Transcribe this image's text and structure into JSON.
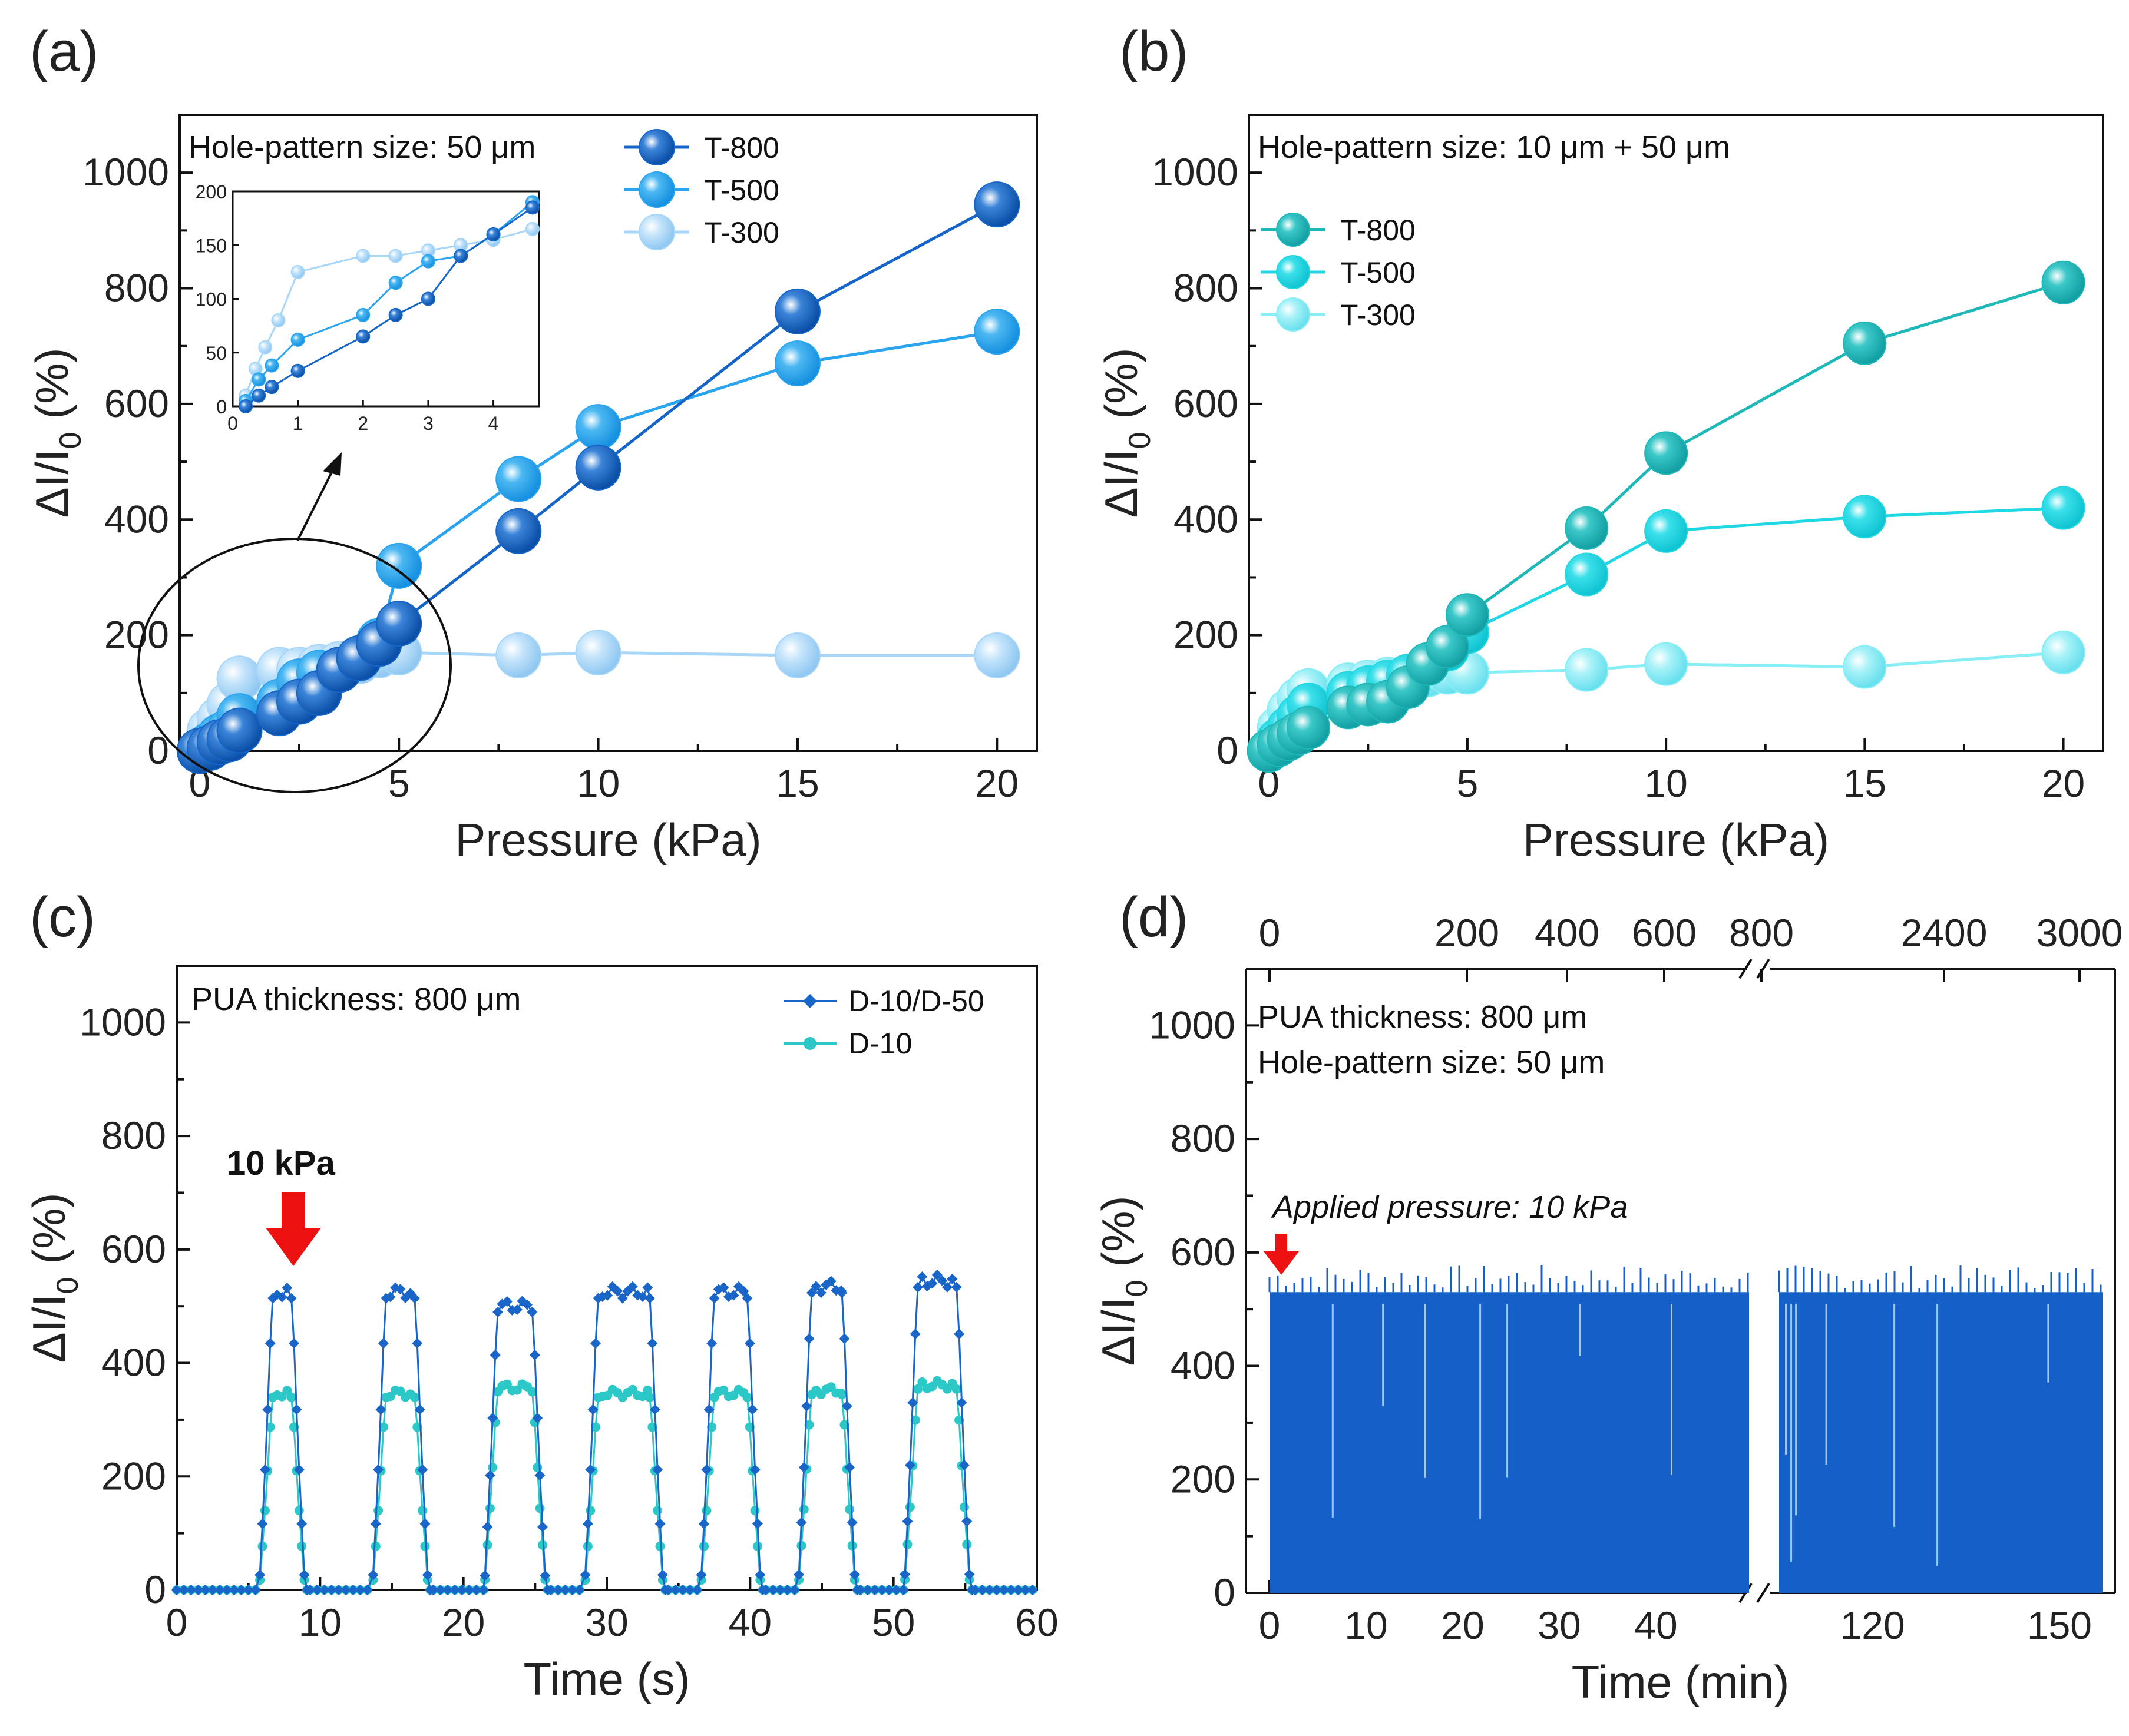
{
  "colors": {
    "t800": "#1565c8",
    "t500": "#2aa4ee",
    "t300": "#a8d6f8",
    "c800": "#1fb8b8",
    "c500": "#20d8e4",
    "c300": "#88eef6",
    "d1050": "#1a66c8",
    "d10": "#2cc8c8",
    "arrow": "#ee1111",
    "dfill": "#1460c8"
  },
  "chart_data": [
    {
      "panel": "(a)",
      "type": "line",
      "xlabel": "Pressure (kPa)",
      "ylabel_main": "ΔI/I",
      "ylabel_sub": "0",
      "ylabel_tail": " (%)",
      "xlim": [
        -0.5,
        21
      ],
      "ylim": [
        0,
        1100
      ],
      "xticks": [
        0,
        5,
        10,
        15,
        20
      ],
      "yticks": [
        0,
        200,
        400,
        600,
        800,
        1000
      ],
      "annotation": "Hole-pattern size: 50 μm",
      "series": [
        {
          "name": "T-800",
          "x": [
            0,
            0.25,
            0.5,
            0.75,
            1,
            2,
            2.5,
            3,
            3.5,
            4,
            4.5,
            5,
            8,
            10,
            15,
            20
          ],
          "y": [
            0,
            5,
            15,
            20,
            35,
            65,
            85,
            100,
            140,
            160,
            185,
            220,
            380,
            490,
            760,
            945
          ]
        },
        {
          "name": "T-500",
          "x": [
            0,
            0.25,
            0.5,
            0.75,
            1,
            2,
            2.5,
            3,
            3.5,
            4,
            4.5,
            5,
            8,
            10,
            15,
            20
          ],
          "y": [
            0,
            10,
            25,
            35,
            60,
            85,
            120,
            135,
            140,
            160,
            190,
            320,
            470,
            560,
            670,
            725
          ]
        },
        {
          "name": "T-300",
          "x": [
            0,
            0.25,
            0.5,
            0.75,
            1,
            2,
            2.5,
            3,
            3.5,
            4,
            4.5,
            5,
            8,
            10,
            15,
            20
          ],
          "y": [
            0,
            35,
            55,
            80,
            125,
            140,
            140,
            145,
            150,
            155,
            165,
            170,
            165,
            170,
            165,
            165
          ]
        }
      ],
      "inset": {
        "xlim": [
          0,
          4.7
        ],
        "ylim": [
          0,
          200
        ],
        "xticks": [
          0,
          1,
          2,
          3,
          4
        ],
        "yticks": [
          0,
          50,
          100,
          150,
          200
        ],
        "series": [
          {
            "name": "T-800",
            "x": [
              0.2,
              0.4,
              0.6,
              1,
              2,
              2.5,
              3,
              3.5,
              4,
              4.6
            ],
            "y": [
              0,
              10,
              18,
              33,
              65,
              85,
              100,
              140,
              160,
              185
            ]
          },
          {
            "name": "T-500",
            "x": [
              0.2,
              0.4,
              0.6,
              1,
              2,
              2.5,
              3,
              3.5,
              4,
              4.6
            ],
            "y": [
              5,
              25,
              38,
              62,
              85,
              115,
              135,
              140,
              160,
              190
            ]
          },
          {
            "name": "T-300",
            "x": [
              0.2,
              0.35,
              0.5,
              0.7,
              1,
              2,
              2.5,
              3,
              3.5,
              4,
              4.6
            ],
            "y": [
              10,
              35,
              55,
              80,
              125,
              140,
              140,
              145,
              150,
              155,
              165
            ]
          }
        ]
      }
    },
    {
      "panel": "(b)",
      "type": "line",
      "xlabel": "Pressure (kPa)",
      "ylabel_main": "ΔI/I",
      "ylabel_sub": "0",
      "ylabel_tail": " (%)",
      "xlim": [
        -0.5,
        21
      ],
      "ylim": [
        0,
        1100
      ],
      "xticks": [
        0,
        5,
        10,
        15,
        20
      ],
      "yticks": [
        0,
        200,
        400,
        600,
        800,
        1000
      ],
      "annotation": "Hole-pattern size: 10 μm + 50 μm",
      "series": [
        {
          "name": "T-800",
          "x": [
            0,
            0.25,
            0.5,
            0.75,
            1,
            2,
            2.5,
            3,
            3.5,
            4,
            4.5,
            5,
            8,
            10,
            15,
            20
          ],
          "y": [
            0,
            10,
            20,
            30,
            40,
            75,
            80,
            85,
            110,
            150,
            180,
            235,
            385,
            515,
            705,
            810
          ]
        },
        {
          "name": "T-500",
          "x": [
            0,
            0.25,
            0.5,
            0.75,
            1,
            2,
            2.5,
            3,
            3.5,
            4,
            4.5,
            5,
            8,
            10,
            15,
            20
          ],
          "y": [
            0,
            20,
            40,
            60,
            80,
            100,
            110,
            120,
            130,
            150,
            175,
            205,
            305,
            380,
            405,
            420
          ]
        },
        {
          "name": "T-300",
          "x": [
            0,
            0.25,
            0.5,
            0.75,
            1,
            2,
            2.5,
            3,
            3.5,
            4,
            4.5,
            5,
            8,
            10,
            15,
            20
          ],
          "y": [
            0,
            40,
            70,
            90,
            105,
            115,
            120,
            125,
            125,
            130,
            135,
            135,
            140,
            150,
            145,
            170
          ]
        }
      ]
    },
    {
      "panel": "(c)",
      "type": "line",
      "xlabel": "Time (s)",
      "ylabel_main": "ΔI/I",
      "ylabel_sub": "0",
      "ylabel_tail": " (%)",
      "xlim": [
        0,
        60
      ],
      "ylim": [
        0,
        1100
      ],
      "xticks": [
        0,
        10,
        20,
        30,
        40,
        50,
        60
      ],
      "yticks": [
        0,
        200,
        400,
        600,
        800,
        1000
      ],
      "annotation": "PUA thickness: 800 μm",
      "pressure_label": "10 kPa",
      "pulses": {
        "starts": [
          5.8,
          13.7,
          21.5,
          28.5,
          36.6,
          43.4,
          50.8
        ],
        "ends": [
          9.0,
          17.6,
          25.8,
          34.0,
          40.8,
          47.4,
          55.4
        ],
        "D-10/D-50": [
          530,
          530,
          505,
          530,
          530,
          540,
          550
        ],
        "D-10": [
          350,
          350,
          360,
          350,
          350,
          355,
          365
        ]
      },
      "series": [
        {
          "name": "D-10/D-50",
          "baseline": 0
        },
        {
          "name": "D-10",
          "baseline": 0
        }
      ]
    },
    {
      "panel": "(d)",
      "type": "area",
      "xlabel": "Time (min)",
      "ylabel_main": "ΔI/I",
      "ylabel_sub": "0",
      "ylabel_tail": " (%)",
      "ylim": [
        0,
        1100
      ],
      "xticks": [
        "0",
        "10",
        "20",
        "30",
        "40",
        "120",
        "150"
      ],
      "top_xticks": [
        "0",
        "200",
        "400",
        "600",
        "800",
        "2400",
        "3000"
      ],
      "yticks": [
        0,
        200,
        400,
        600,
        800,
        1000
      ],
      "annotation_line1": "PUA thickness: 800 μm",
      "annotation_line2": "Hole-pattern size: 50 μm",
      "pressure_label": "Applied pressure: 10 kPa",
      "plateau": 530,
      "segment1_range": [
        0,
        50
      ],
      "segment2_range": [
        105,
        157
      ]
    }
  ],
  "panel_labels": [
    "(a)",
    "(b)",
    "(c)",
    "(d)"
  ],
  "legend_a": [
    "T-800",
    "T-500",
    "T-300"
  ],
  "legend_b": [
    "T-800",
    "T-500",
    "T-300"
  ],
  "legend_c": [
    "D-10/D-50",
    "D-10"
  ]
}
